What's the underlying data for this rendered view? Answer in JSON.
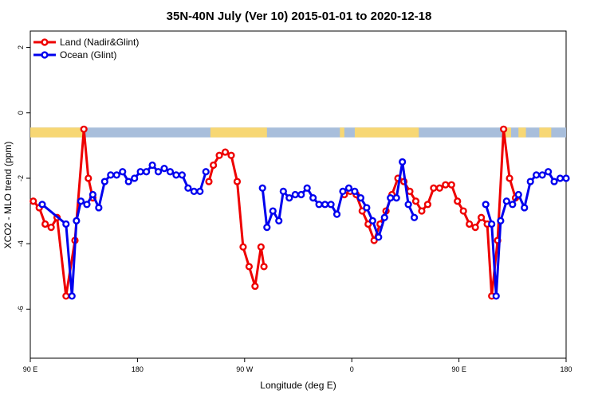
{
  "chart_data": {
    "type": "line",
    "title": "35N-40N July (Ver 10)   2015-01-01 to 2020-12-18",
    "xlabel": "Longitude (deg E)",
    "ylabel": "XCO2 - MLO trend (ppm)",
    "xlim": [
      90,
      450
    ],
    "ylim": [
      -7.5,
      2.5
    ],
    "x_ticks": [
      {
        "value": 90,
        "label": "90 E"
      },
      {
        "value": 162,
        "label": "180"
      },
      {
        "value": 234,
        "label": "90 W"
      },
      {
        "value": 306,
        "label": "0"
      },
      {
        "value": 378,
        "label": "90 E"
      },
      {
        "value": 450,
        "label": "180"
      }
    ],
    "y_ticks": [
      {
        "value": 2,
        "label": "2"
      },
      {
        "value": 0,
        "label": "0"
      },
      {
        "value": -2,
        "label": "-2"
      },
      {
        "value": -4,
        "label": "-4"
      },
      {
        "value": -6,
        "label": "-6"
      }
    ],
    "legend": {
      "placement": "top-left",
      "entries": [
        {
          "label": "Land (Nadir&Glint)",
          "color": "#ee0000"
        },
        {
          "label": "Ocean (Glint)",
          "color": "#0000ee"
        }
      ]
    },
    "surface_strip": {
      "y_range": [
        -0.75,
        -0.45
      ],
      "land_color": "#f7d774",
      "ocean_color": "#a8bedb",
      "land_ranges": [
        [
          90,
          127
        ],
        [
          211,
          249
        ],
        [
          298,
          301
        ],
        [
          308,
          351
        ],
        [
          408,
          413
        ],
        [
          418,
          423
        ],
        [
          432,
          440
        ]
      ]
    },
    "series": [
      {
        "name": "Land (Nadir&Glint)",
        "color": "#ee0000",
        "segments": [
          [
            [
              92,
              -2.7
            ],
            [
              96,
              -2.9
            ],
            [
              100,
              -3.4
            ],
            [
              104,
              -3.5
            ],
            [
              108,
              -3.2
            ],
            [
              114,
              -5.6
            ],
            [
              120,
              -3.9
            ],
            [
              126,
              -0.5
            ],
            [
              129,
              -2.0
            ],
            [
              132,
              -2.6
            ]
          ],
          [
            [
              210,
              -2.1
            ],
            [
              213,
              -1.6
            ],
            [
              217,
              -1.3
            ],
            [
              221,
              -1.2
            ],
            [
              225,
              -1.3
            ],
            [
              229,
              -2.1
            ],
            [
              233,
              -4.1
            ],
            [
              237,
              -4.7
            ],
            [
              241,
              -5.3
            ],
            [
              245,
              -4.1
            ],
            [
              247,
              -4.7
            ]
          ],
          [
            [
              301,
              -2.5
            ],
            [
              305,
              -2.4
            ],
            [
              309,
              -2.5
            ],
            [
              313,
              -3.0
            ],
            [
              317,
              -3.4
            ],
            [
              321,
              -3.9
            ],
            [
              325,
              -3.4
            ],
            [
              329,
              -3.0
            ],
            [
              333,
              -2.5
            ],
            [
              337,
              -2.0
            ],
            [
              341,
              -2.1
            ],
            [
              345,
              -2.4
            ],
            [
              349,
              -2.7
            ],
            [
              353,
              -3.0
            ],
            [
              357,
              -2.8
            ],
            [
              361,
              -2.3
            ],
            [
              365,
              -2.3
            ],
            [
              369,
              -2.2
            ],
            [
              373,
              -2.2
            ],
            [
              377,
              -2.7
            ],
            [
              381,
              -3.0
            ],
            [
              385,
              -3.4
            ],
            [
              389,
              -3.5
            ],
            [
              393,
              -3.2
            ],
            [
              397,
              -3.4
            ],
            [
              400,
              -5.6
            ],
            [
              404,
              -3.9
            ],
            [
              408,
              -0.5
            ],
            [
              412,
              -2.0
            ],
            [
              416,
              -2.6
            ]
          ]
        ]
      },
      {
        "name": "Ocean (Glint)",
        "color": "#0000ee",
        "segments": [
          [
            [
              98,
              -2.8
            ],
            [
              114,
              -3.4
            ],
            [
              118,
              -5.6
            ],
            [
              121,
              -3.3
            ],
            [
              124,
              -2.7
            ],
            [
              128,
              -2.8
            ],
            [
              132,
              -2.5
            ],
            [
              136,
              -2.9
            ],
            [
              140,
              -2.1
            ],
            [
              144,
              -1.9
            ],
            [
              148,
              -1.9
            ],
            [
              152,
              -1.8
            ],
            [
              156,
              -2.1
            ],
            [
              160,
              -2.0
            ],
            [
              164,
              -1.8
            ],
            [
              168,
              -1.8
            ],
            [
              172,
              -1.6
            ],
            [
              176,
              -1.8
            ],
            [
              180,
              -1.7
            ],
            [
              184,
              -1.8
            ],
            [
              188,
              -1.9
            ],
            [
              192,
              -1.9
            ],
            [
              196,
              -2.3
            ],
            [
              200,
              -2.4
            ],
            [
              204,
              -2.4
            ],
            [
              208,
              -1.8
            ]
          ],
          [
            [
              246,
              -2.3
            ],
            [
              249,
              -3.5
            ],
            [
              253,
              -3.0
            ],
            [
              257,
              -3.3
            ],
            [
              260,
              -2.4
            ],
            [
              264,
              -2.6
            ],
            [
              268,
              -2.5
            ],
            [
              272,
              -2.5
            ],
            [
              276,
              -2.3
            ],
            [
              280,
              -2.6
            ],
            [
              284,
              -2.8
            ],
            [
              288,
              -2.8
            ],
            [
              292,
              -2.8
            ],
            [
              296,
              -3.1
            ],
            [
              300,
              -2.4
            ],
            [
              304,
              -2.3
            ],
            [
              308,
              -2.4
            ],
            [
              312,
              -2.6
            ],
            [
              316,
              -2.9
            ],
            [
              320,
              -3.3
            ],
            [
              324,
              -3.8
            ],
            [
              328,
              -3.2
            ],
            [
              332,
              -2.6
            ],
            [
              336,
              -2.6
            ],
            [
              340,
              -1.5
            ],
            [
              344,
              -2.8
            ],
            [
              348,
              -3.2
            ]
          ],
          [
            [
              396,
              -2.8
            ],
            [
              400,
              -3.4
            ],
            [
              403,
              -5.6
            ],
            [
              406,
              -3.3
            ],
            [
              410,
              -2.7
            ],
            [
              414,
              -2.8
            ],
            [
              418,
              -2.5
            ],
            [
              422,
              -2.9
            ],
            [
              426,
              -2.1
            ],
            [
              430,
              -1.9
            ],
            [
              434,
              -1.9
            ],
            [
              438,
              -1.8
            ],
            [
              442,
              -2.1
            ],
            [
              446,
              -2.0
            ],
            [
              450,
              -2.0
            ]
          ]
        ]
      }
    ]
  }
}
